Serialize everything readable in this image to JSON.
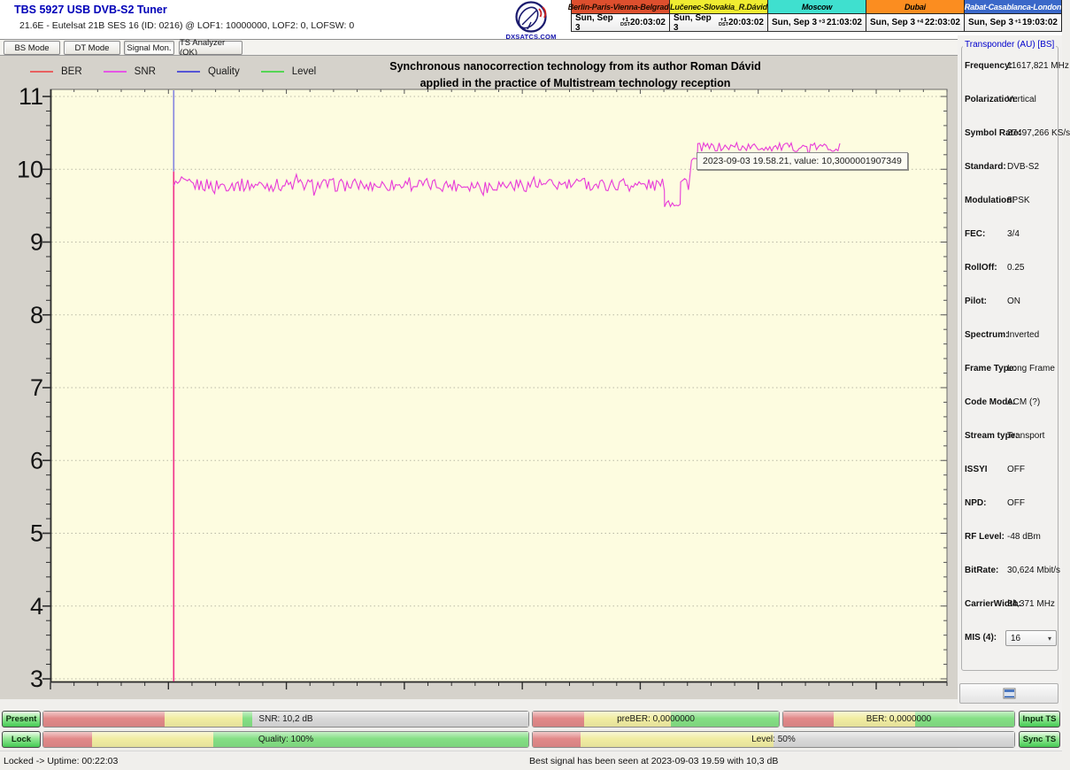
{
  "window": {
    "title": "TBS 5927 USB DVB-S2 Tuner",
    "subtitle": "21.6E - Eutelsat 21B  SES 16 (ID: 0216) @ LOF1: 10000000, LOF2: 0, LOFSW: 0"
  },
  "logo": {
    "text": "DXSATCS.COM"
  },
  "clocks": [
    {
      "name": "Berlin-Paris-Vienna-Belgrade",
      "bg": "#dd4f2e",
      "fg": "#1a0a00",
      "date": "Sun, Sep 3",
      "tz_top": "+1",
      "tz_bottom": "DST",
      "time": "20:03:02"
    },
    {
      "name": "Lučenec-Slovakia_R.Dávid",
      "bg": "#f0ec31",
      "fg": "#1a1a00",
      "date": "Sun, Sep 3",
      "tz_top": "+1",
      "tz_bottom": "DST",
      "time": "20:03:02"
    },
    {
      "name": "Moscow",
      "bg": "#3fe0cf",
      "fg": "#000000",
      "date": "Sun, Sep 3",
      "tz_top": "+3",
      "tz_bottom": "",
      "time": "21:03:02"
    },
    {
      "name": "Dubai",
      "bg": "#fb8d20",
      "fg": "#000000",
      "date": "Sun, Sep 3",
      "tz_top": "+4",
      "tz_bottom": "",
      "time": "22:03:02"
    },
    {
      "name": "Rabat-Casablanca-London",
      "bg": "#3a68c9",
      "fg": "#ffffff",
      "date": "Sun, Sep 3",
      "tz_top": "+1",
      "tz_bottom": "",
      "time": "19:03:02"
    }
  ],
  "tabs": [
    {
      "label": "BS Mode",
      "active": false
    },
    {
      "label": "DT Mode",
      "active": false
    },
    {
      "label": "Signal Mon.",
      "active": true
    },
    {
      "label": "TS Analyzer (OK)",
      "active": false
    }
  ],
  "chart_data": {
    "type": "line",
    "title": "Synchronous nanocorrection technology from its author Roman Dávid applied in the practice of Multistream technology reception",
    "title_line1": "Synchronous nanocorrection technology from its author Roman Dávid",
    "title_line2": "applied in the practice of Multistream technology reception",
    "plot_bg": "#fdfce0",
    "grid": "horizontal-dotted",
    "ylim": [
      2.95,
      11.1
    ],
    "y_ticks": [
      11,
      10,
      9,
      8,
      7,
      6,
      5,
      4,
      3
    ],
    "y_minor_step": 0.2,
    "x_minor_intervals": 38,
    "x_major_every": 5,
    "legend_position": "top-left",
    "legend": [
      {
        "label": "BER",
        "color": "#e86060"
      },
      {
        "label": "SNR",
        "color": "#e556e5"
      },
      {
        "label": "Quality",
        "color": "#5555d5"
      },
      {
        "label": "Level",
        "color": "#55d555"
      }
    ],
    "lock_event": {
      "x_frac": 0.1375,
      "quality_line_color": "#8484e0",
      "snr_line_color": "#f0308a",
      "split_value": 9.97
    },
    "snr_series": {
      "name": "SNR (dB)",
      "color": "#e83ad8",
      "segments": [
        {
          "from": 0.1375,
          "to": 0.685,
          "base": 9.78,
          "noise": 0.09
        },
        {
          "from": 0.685,
          "to": 0.703,
          "base": 9.55,
          "noise": 0.08
        },
        {
          "from": 0.703,
          "to": 0.712,
          "base": 9.82,
          "noise": 0.12
        },
        {
          "from": 0.715,
          "to": 0.722,
          "base": 10.12,
          "noise": 0.08
        },
        {
          "from": 0.722,
          "to": 0.882,
          "base": 10.3,
          "noise": 0.06
        }
      ]
    },
    "tooltip": {
      "text": "2023-09-03 19.58.21, value: 10,3000001907349",
      "value": 10.3000001907349
    }
  },
  "transponder": {
    "group_label": "Transponder (AU) [BS]",
    "fields": [
      {
        "label": "Frequency:",
        "value": "11617,821 MHz"
      },
      {
        "label": "Polarization:",
        "value": "Vertical"
      },
      {
        "label": "Symbol Rate:",
        "value": "27497,266 KS/s"
      },
      {
        "label": "Standard:",
        "value": "DVB-S2"
      },
      {
        "label": "Modulation:",
        "value": "8PSK"
      },
      {
        "label": "FEC:",
        "value": "3/4"
      },
      {
        "label": "RollOff:",
        "value": "0.25"
      },
      {
        "label": "Pilot:",
        "value": "ON"
      },
      {
        "label": "Spectrum:",
        "value": "Inverted"
      },
      {
        "label": "Frame Type:",
        "value": "Long Frame"
      },
      {
        "label": "Code Mode:",
        "value": "ACM (?)"
      },
      {
        "label": "Stream type:",
        "value": "Transport"
      },
      {
        "label": "ISSYI",
        "value": "OFF"
      },
      {
        "label": "NPD:",
        "value": "OFF"
      },
      {
        "label": "RF Level:",
        "value": "-48 dBm"
      },
      {
        "label": "BitRate:",
        "value": "30,624 Mbit/s"
      },
      {
        "label": "CarrierWidth:",
        "value": "34,371 MHz"
      }
    ],
    "mis": {
      "label": "MIS (4):",
      "selected": "16"
    }
  },
  "buttons": {
    "present": "Present",
    "lock": "Lock",
    "input_ts": "Input TS",
    "sync_ts": "Sync TS"
  },
  "bar_colors": {
    "red": "#e18989",
    "yellow": "#f1eda2",
    "green": "#84df84",
    "silver": "#d9d9d9"
  },
  "bars": {
    "snr": {
      "label": "SNR: 10,2 dB",
      "segments": [
        [
          "red",
          25
        ],
        [
          "yellow",
          41
        ],
        [
          "green",
          43
        ],
        [
          "silver",
          100
        ]
      ]
    },
    "quality": {
      "label": "Quality: 100%",
      "segments": [
        [
          "red",
          10
        ],
        [
          "yellow",
          35
        ],
        [
          "green",
          100
        ]
      ]
    },
    "preber": {
      "label": "preBER: 0,0000000",
      "segments": [
        [
          "red",
          21
        ],
        [
          "yellow",
          56
        ],
        [
          "green",
          100
        ]
      ]
    },
    "ber": {
      "label": "BER: 0,0000000",
      "segments": [
        [
          "red",
          22
        ],
        [
          "yellow",
          57
        ],
        [
          "green",
          100
        ]
      ]
    },
    "level": {
      "label": "Level: 50%",
      "segments": [
        [
          "red",
          10
        ],
        [
          "yellow",
          50
        ],
        [
          "silver",
          100
        ]
      ]
    }
  },
  "statusbar": {
    "left": "Locked -> Uptime: 00:22:03",
    "right": "Best signal has been seen at 2023-09-03 19.59 with 10,3 dB"
  }
}
